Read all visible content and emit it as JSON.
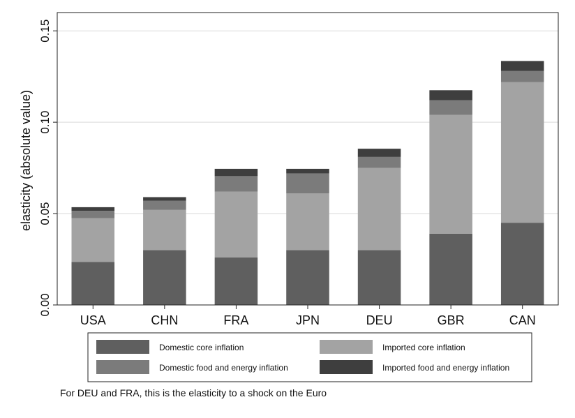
{
  "chart_data": {
    "type": "bar",
    "stacked": true,
    "ylabel": "elasticity (absolute value)",
    "ylim": [
      0,
      0.16
    ],
    "yticks": [
      "0.00",
      "0.05",
      "0.10",
      "0.15"
    ],
    "grid": true,
    "legend_position": "bottom",
    "categories": [
      "USA",
      "CHN",
      "FRA",
      "JPN",
      "DEU",
      "GBR",
      "CAN"
    ],
    "series": [
      {
        "name": "Domestic core inflation",
        "color": "#5f5f5f",
        "values": [
          0.0235,
          0.03,
          0.026,
          0.03,
          0.03,
          0.039,
          0.045
        ]
      },
      {
        "name": "Imported core inflation",
        "color": "#a3a3a3",
        "values": [
          0.024,
          0.022,
          0.036,
          0.031,
          0.045,
          0.065,
          0.077
        ]
      },
      {
        "name": "Domestic food and energy inflation",
        "color": "#7b7b7b",
        "values": [
          0.004,
          0.005,
          0.0085,
          0.011,
          0.006,
          0.008,
          0.006
        ]
      },
      {
        "name": "Imported food and energy inflation",
        "color": "#3e3e3e",
        "values": [
          0.002,
          0.002,
          0.004,
          0.0025,
          0.0045,
          0.0055,
          0.0055
        ]
      }
    ],
    "legend_order": [
      0,
      1,
      2,
      3
    ]
  },
  "footnote": "For DEU and FRA, this is the elasticity to a shock on the Euro"
}
